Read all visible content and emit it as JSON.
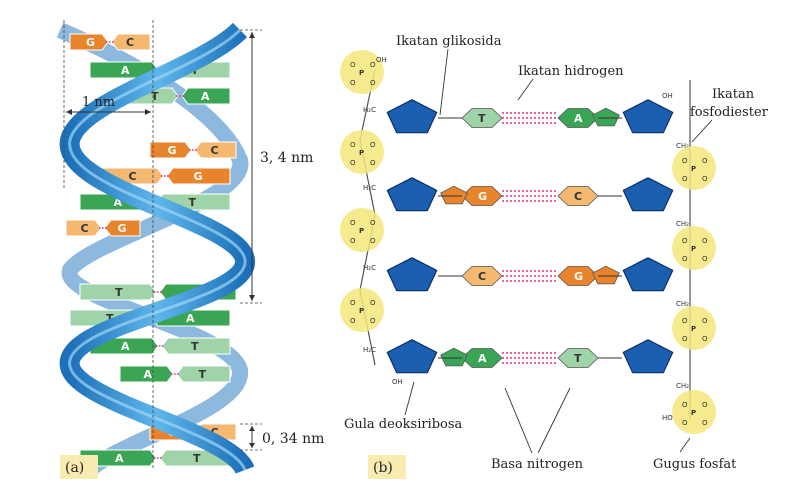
{
  "panel_a": {
    "tag": "(a)",
    "width_label": "1 nm",
    "turn_label": "3, 4 nm",
    "rise_label": "0, 34 nm",
    "pairs": [
      {
        "left": "G",
        "right": "C"
      },
      {
        "left": "A",
        "right": "T"
      },
      {
        "left": "T",
        "right": "A"
      },
      {
        "left": "G",
        "right": "C"
      },
      {
        "left": "C",
        "right": "G"
      },
      {
        "left": "A",
        "right": "T"
      },
      {
        "left": "C",
        "right": "G"
      },
      {
        "left": "T",
        "right": "A"
      },
      {
        "left": "T",
        "right": "A"
      },
      {
        "left": "A",
        "right": "T"
      },
      {
        "left": "A",
        "right": "T"
      },
      {
        "left": "G",
        "right": "C"
      },
      {
        "left": "A",
        "right": "T"
      }
    ]
  },
  "panel_b": {
    "tag": "(b)",
    "labels": {
      "glycosidic": "Ikatan glikosida",
      "hydrogen": "Ikatan hidrogen",
      "phosphodiester_1": "Ikatan",
      "phosphodiester_2": "fosfodiester",
      "sugar": "Gula deoksiribosa",
      "base": "Basa nitrogen",
      "phosphate": "Gugus fosfat"
    },
    "rungs": [
      {
        "left": "T",
        "right": "A"
      },
      {
        "left": "G",
        "right": "C"
      },
      {
        "left": "C",
        "right": "G"
      },
      {
        "left": "A",
        "right": "T"
      }
    ],
    "chem": {
      "P": "P",
      "O": "O",
      "OH": "OH",
      "HO": "HO",
      "H2C": "H₂C",
      "CH2": "CH₂"
    }
  },
  "colors": {
    "G": "#e8852c",
    "C": "#f4b870",
    "A": "#3aa655",
    "T": "#9fd4a8",
    "backbone": "#2a8ad0",
    "phosphate": "#f5e67a",
    "sugar": "#1a5fb0"
  }
}
